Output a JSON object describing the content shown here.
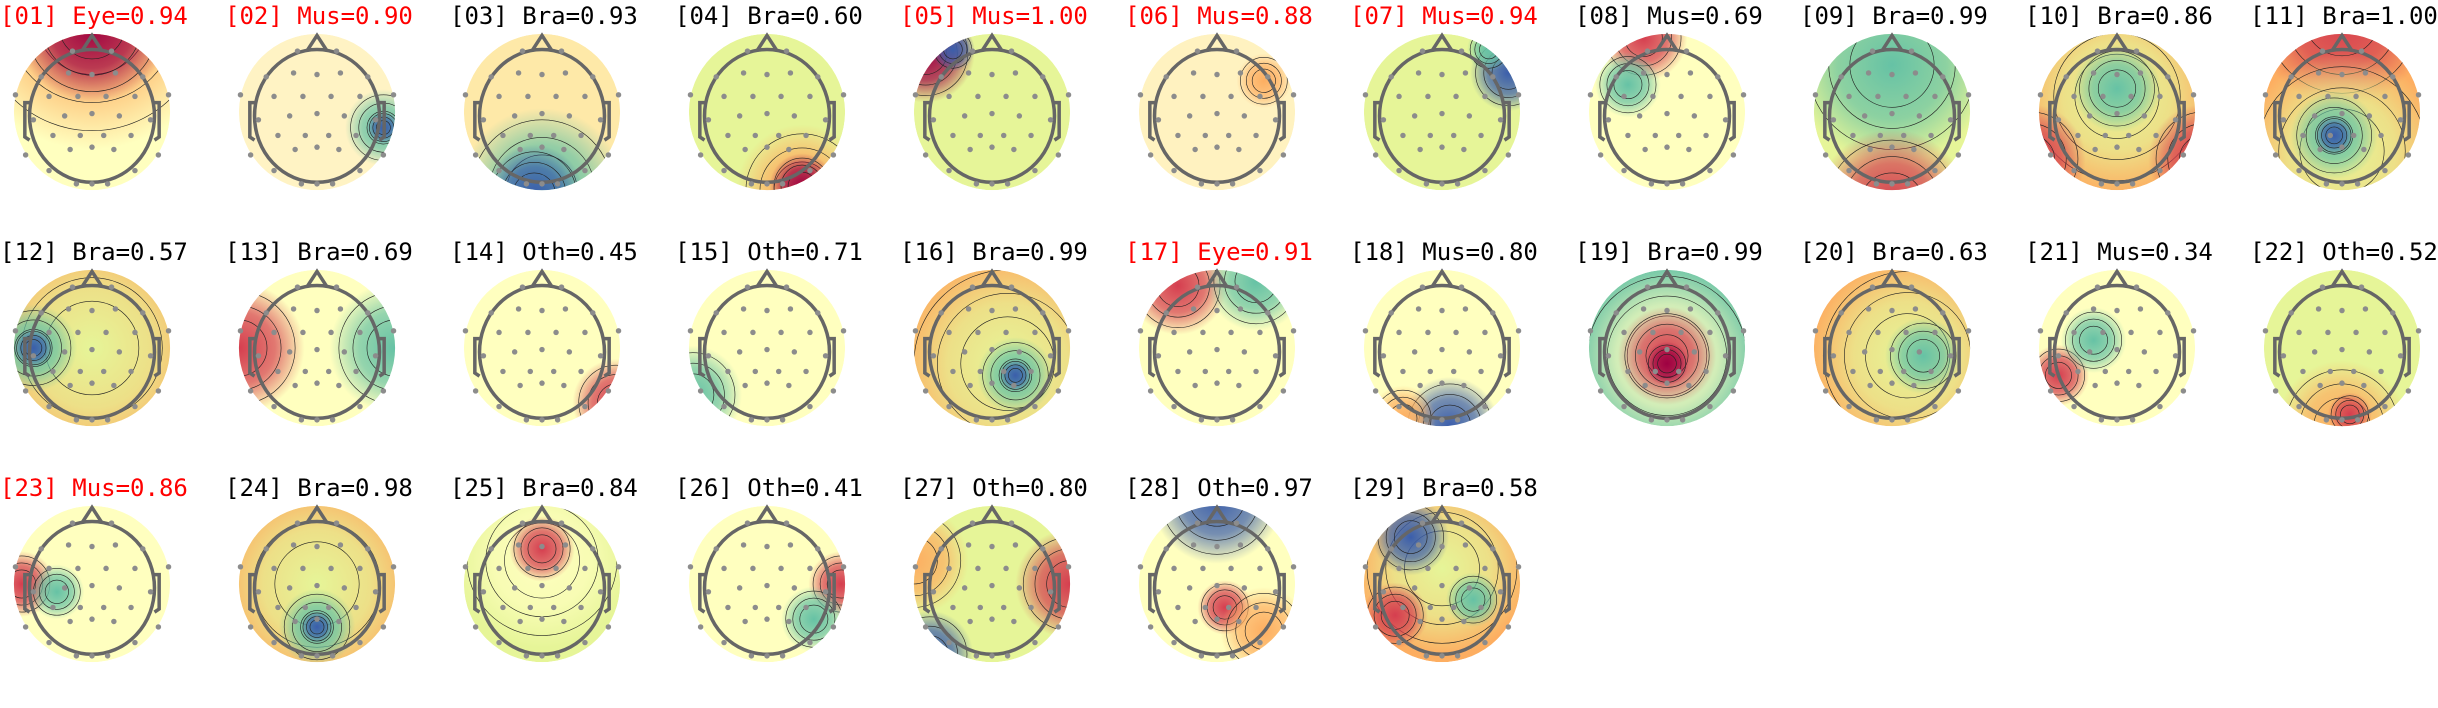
{
  "chart_data": {
    "type": "heatmap",
    "columns": 11,
    "flag_color": "#ff0000",
    "normal_color": "#000000",
    "colormap": [
      "#3b5eab",
      "#66c2a5",
      "#e6f598",
      "#ffffbf",
      "#fdae61",
      "#d53e4f",
      "#9e0142"
    ],
    "components": [
      {
        "title": "[01] Eye=0.94",
        "flagged": true
      },
      {
        "title": "[02] Mus=0.90",
        "flagged": true
      },
      {
        "title": "[03] Bra=0.93",
        "flagged": false
      },
      {
        "title": "[04] Bra=0.60",
        "flagged": false
      },
      {
        "title": "[05] Mus=1.00",
        "flagged": true
      },
      {
        "title": "[06] Mus=0.88",
        "flagged": true
      },
      {
        "title": "[07] Mus=0.94",
        "flagged": true
      },
      {
        "title": "[08] Mus=0.69",
        "flagged": false
      },
      {
        "title": "[09] Bra=0.99",
        "flagged": false
      },
      {
        "title": "[10] Bra=0.86",
        "flagged": false
      },
      {
        "title": "[11] Bra=1.00",
        "flagged": false
      },
      {
        "title": "[12] Bra=0.57",
        "flagged": false
      },
      {
        "title": "[13] Bra=0.69",
        "flagged": false
      },
      {
        "title": "[14] Oth=0.45",
        "flagged": false
      },
      {
        "title": "[15] Oth=0.71",
        "flagged": false
      },
      {
        "title": "[16] Bra=0.99",
        "flagged": false
      },
      {
        "title": "[17] Eye=0.91",
        "flagged": true
      },
      {
        "title": "[18] Mus=0.80",
        "flagged": false
      },
      {
        "title": "[19] Bra=0.99",
        "flagged": false
      },
      {
        "title": "[20] Bra=0.63",
        "flagged": false
      },
      {
        "title": "[21] Mus=0.34",
        "flagged": false
      },
      {
        "title": "[22] Oth=0.52",
        "flagged": false
      },
      {
        "title": "[23] Mus=0.86",
        "flagged": true
      },
      {
        "title": "[24] Bra=0.98",
        "flagged": false
      },
      {
        "title": "[25] Bra=0.84",
        "flagged": false
      },
      {
        "title": "[26] Oth=0.41",
        "flagged": false
      },
      {
        "title": "[27] Oth=0.80",
        "flagged": false
      },
      {
        "title": "[28] Oth=0.97",
        "flagged": false
      },
      {
        "title": "[29] Bra=0.58",
        "flagged": false
      }
    ]
  }
}
